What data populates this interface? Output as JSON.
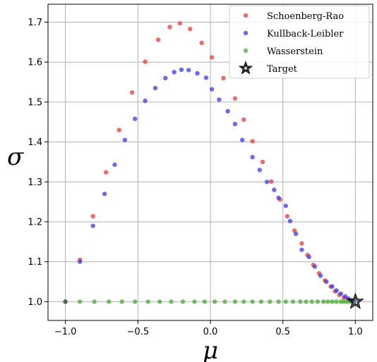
{
  "chart_data": {
    "type": "scatter",
    "xlabel": "μ",
    "ylabel": "σ",
    "xlim": [
      -1.12,
      1.12
    ],
    "ylim": [
      0.953,
      1.745
    ],
    "grid": true,
    "legend_position": "top-right",
    "x_ticks": [
      {
        "value": -1.0,
        "label": "−1.0"
      },
      {
        "value": -0.5,
        "label": "−0.5"
      },
      {
        "value": 0.0,
        "label": "0.0"
      },
      {
        "value": 0.5,
        "label": "0.5"
      },
      {
        "value": 1.0,
        "label": "1.0"
      }
    ],
    "y_ticks": [
      {
        "value": 1.0,
        "label": "1.0"
      },
      {
        "value": 1.1,
        "label": "1.1"
      },
      {
        "value": 1.2,
        "label": "1.2"
      },
      {
        "value": 1.3,
        "label": "1.3"
      },
      {
        "value": 1.4,
        "label": "1.4"
      },
      {
        "value": 1.5,
        "label": "1.5"
      },
      {
        "value": 1.6,
        "label": "1.6"
      },
      {
        "value": 1.7,
        "label": "1.7"
      }
    ],
    "series": [
      {
        "name": "Schoenberg-Rao",
        "color": "#e83a3a",
        "points": [
          [
            -0.9,
            1.105
          ],
          [
            -0.81,
            1.214
          ],
          [
            -0.72,
            1.324
          ],
          [
            -0.63,
            1.43
          ],
          [
            -0.54,
            1.524
          ],
          [
            -0.45,
            1.601
          ],
          [
            -0.36,
            1.656
          ],
          [
            -0.28,
            1.688
          ],
          [
            -0.21,
            1.697
          ],
          [
            -0.14,
            1.683
          ],
          [
            -0.06,
            1.648
          ],
          [
            0.01,
            1.612
          ],
          [
            0.09,
            1.56
          ],
          [
            0.17,
            1.509
          ],
          [
            0.23,
            1.456
          ],
          [
            0.29,
            1.402
          ],
          [
            0.36,
            1.35
          ],
          [
            0.42,
            1.301
          ],
          [
            0.48,
            1.256
          ],
          [
            0.53,
            1.214
          ],
          [
            0.58,
            1.178
          ],
          [
            0.63,
            1.146
          ],
          [
            0.67,
            1.117
          ],
          [
            0.71,
            1.092
          ],
          [
            0.75,
            1.071
          ],
          [
            0.79,
            1.053
          ],
          [
            0.83,
            1.038
          ],
          [
            0.86,
            1.026
          ],
          [
            0.89,
            1.017
          ],
          [
            0.92,
            1.01
          ],
          [
            0.95,
            1.005
          ],
          [
            0.98,
            1.002
          ]
        ]
      },
      {
        "name": "Kullback-Leibler",
        "color": "#3a3ae8",
        "points": [
          [
            -0.9,
            1.1
          ],
          [
            -0.81,
            1.19
          ],
          [
            -0.73,
            1.27
          ],
          [
            -0.66,
            1.343
          ],
          [
            -0.59,
            1.405
          ],
          [
            -0.52,
            1.458
          ],
          [
            -0.45,
            1.503
          ],
          [
            -0.38,
            1.535
          ],
          [
            -0.31,
            1.56
          ],
          [
            -0.25,
            1.575
          ],
          [
            -0.2,
            1.581
          ],
          [
            -0.15,
            1.58
          ],
          [
            -0.09,
            1.572
          ],
          [
            -0.03,
            1.561
          ],
          [
            0.01,
            1.532
          ],
          [
            0.06,
            1.506
          ],
          [
            0.12,
            1.477
          ],
          [
            0.17,
            1.445
          ],
          [
            0.22,
            1.405
          ],
          [
            0.29,
            1.362
          ],
          [
            0.34,
            1.33
          ],
          [
            0.39,
            1.3
          ],
          [
            0.44,
            1.28
          ],
          [
            0.47,
            1.26
          ],
          [
            0.52,
            1.24
          ],
          [
            0.55,
            1.202
          ],
          [
            0.59,
            1.17
          ],
          [
            0.63,
            1.13
          ],
          [
            0.68,
            1.112
          ],
          [
            0.72,
            1.088
          ],
          [
            0.76,
            1.065
          ],
          [
            0.8,
            1.05
          ],
          [
            0.84,
            1.038
          ],
          [
            0.87,
            1.028
          ],
          [
            0.9,
            1.02
          ],
          [
            0.93,
            1.013
          ],
          [
            0.95,
            1.008
          ],
          [
            0.97,
            1.004
          ],
          [
            0.99,
            1.001
          ]
        ]
      },
      {
        "name": "Wasserstein",
        "color": "#4caa3a",
        "points": [
          [
            -1.0,
            1.0
          ],
          [
            -0.9,
            1.0
          ],
          [
            -0.8,
            1.0
          ],
          [
            -0.7,
            1.0
          ],
          [
            -0.61,
            1.0
          ],
          [
            -0.52,
            1.0
          ],
          [
            -0.43,
            1.0
          ],
          [
            -0.35,
            1.0
          ],
          [
            -0.27,
            1.0
          ],
          [
            -0.19,
            1.0
          ],
          [
            -0.11,
            1.0
          ],
          [
            -0.04,
            1.0
          ],
          [
            0.03,
            1.0
          ],
          [
            0.1,
            1.0
          ],
          [
            0.17,
            1.0
          ],
          [
            0.23,
            1.0
          ],
          [
            0.29,
            1.0
          ],
          [
            0.35,
            1.0
          ],
          [
            0.41,
            1.0
          ],
          [
            0.47,
            1.0
          ],
          [
            0.52,
            1.0
          ],
          [
            0.57,
            1.0
          ],
          [
            0.62,
            1.0
          ],
          [
            0.66,
            1.0
          ],
          [
            0.7,
            1.0
          ],
          [
            0.74,
            1.0
          ],
          [
            0.78,
            1.0
          ],
          [
            0.81,
            1.0
          ],
          [
            0.84,
            1.0
          ],
          [
            0.87,
            1.0
          ],
          [
            0.9,
            1.0
          ],
          [
            0.92,
            1.0
          ],
          [
            0.94,
            1.0
          ],
          [
            0.96,
            1.0
          ],
          [
            0.98,
            1.0
          ]
        ]
      }
    ],
    "target": {
      "name": "Target",
      "x": 1.0,
      "y": 1.0,
      "color": "#000000"
    },
    "start_point": {
      "x": -1.0,
      "y": 1.0,
      "color": "#555555"
    }
  }
}
